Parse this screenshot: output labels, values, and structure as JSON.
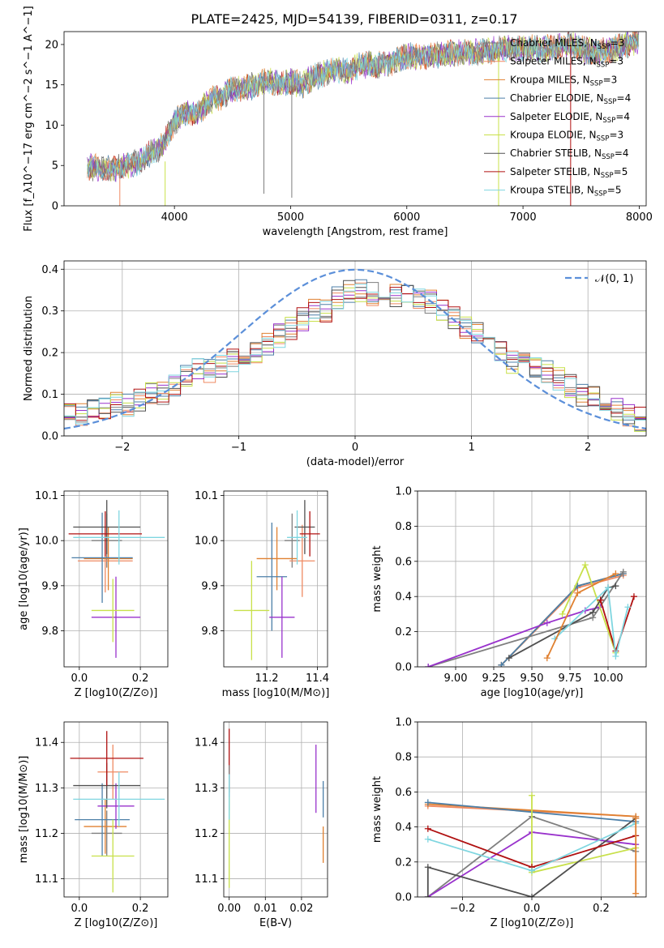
{
  "title": "PLATE=2425, MJD=54139, FIBERID=0311, z=0.17",
  "series_colors": [
    "#7f7f7f",
    "#ef8a62",
    "#e08030",
    "#4c7fa8",
    "#9932cc",
    "#c8e04a",
    "#505050",
    "#b01010",
    "#7fd6e0"
  ],
  "chart_data": [
    {
      "id": "spectrum",
      "type": "line",
      "xlabel": "wavelength [Angstrom, rest frame]",
      "ylabel": "Flux [f_λ10^−17 erg cm^−2 s^−1 A^−1]",
      "xlim": [
        3050,
        8060
      ],
      "ylim": [
        0,
        21.6
      ],
      "xticks": [
        4000,
        5000,
        6000,
        7000,
        8000
      ],
      "yticks": [
        0,
        5,
        10,
        15,
        20
      ],
      "grid": false,
      "legend_position": "upper-right",
      "series": [
        {
          "name": "Chabrier MILES, N_SSP=3"
        },
        {
          "name": "Salpeter MILES, N_SSP=3"
        },
        {
          "name": "Kroupa MILES, N_SSP=3"
        },
        {
          "name": "Chabrier ELODIE, N_SSP=4"
        },
        {
          "name": "Salpeter ELODIE, N_SSP=4"
        },
        {
          "name": "Kroupa ELODIE, N_SSP=3"
        },
        {
          "name": "Chabrier STELIB, N_SSP=4"
        },
        {
          "name": "Salpeter STELIB, N_SSP=5"
        },
        {
          "name": "Kroupa STELIB, N_SSP=5"
        }
      ],
      "continuum": {
        "x": [
          3250,
          3400,
          3500,
          3700,
          3900,
          4000,
          4100,
          4200,
          4300,
          4400,
          4500,
          4600,
          4700,
          4800,
          4900,
          5000,
          5100,
          5200,
          5300,
          5400,
          5500,
          5600,
          5800,
          6000,
          6200,
          6400,
          6600,
          6800,
          7000,
          7200,
          7400,
          7600,
          7800,
          8000
        ],
        "y": [
          4.8,
          4.7,
          4.6,
          5.5,
          7.5,
          10.5,
          11.5,
          11.5,
          13.0,
          13.5,
          14.5,
          14.5,
          15.0,
          15.5,
          15.0,
          15.5,
          15.0,
          16.0,
          16.5,
          17.0,
          16.5,
          17.5,
          17.5,
          18.5,
          18.5,
          19.0,
          19.0,
          19.5,
          19.5,
          19.5,
          20.0,
          19.0,
          19.5,
          20.5
        ]
      },
      "spikes": [
        {
          "x": 3530,
          "y0": 5.0,
          "y1": 0
        },
        {
          "x": 3920,
          "y0": 5.5,
          "y1": 0
        },
        {
          "x": 4770,
          "y0": 16.5,
          "y1": 1.5
        },
        {
          "x": 5010,
          "y0": 17.0,
          "y1": 1.0
        },
        {
          "x": 6790,
          "y0": 19.5,
          "y1": 0
        },
        {
          "x": 7410,
          "y0": 20.0,
          "y1": 0
        }
      ]
    },
    {
      "id": "residuals",
      "type": "histogram",
      "xlabel": "(data-model)/error",
      "ylabel": "Normed distribution",
      "xlim": [
        -2.5,
        2.5
      ],
      "ylim": [
        0,
        0.42
      ],
      "xticks": [
        -2,
        -1,
        0,
        1,
        2
      ],
      "yticks": [
        0.0,
        0.1,
        0.2,
        0.3,
        0.4
      ],
      "grid": true,
      "legend_position": "upper-right",
      "reference": {
        "name": "𝒩(0, 1)",
        "mean": 0,
        "sigma": 1
      },
      "bin_edges_start": -2.5,
      "bin_width": 0.1,
      "n_bins": 50,
      "mean_values": [
        0.055,
        0.055,
        0.06,
        0.07,
        0.075,
        0.075,
        0.085,
        0.1,
        0.1,
        0.125,
        0.145,
        0.165,
        0.155,
        0.165,
        0.18,
        0.17,
        0.2,
        0.22,
        0.24,
        0.26,
        0.28,
        0.3,
        0.3,
        0.33,
        0.35,
        0.35,
        0.34,
        0.35,
        0.34,
        0.34,
        0.33,
        0.32,
        0.3,
        0.28,
        0.26,
        0.25,
        0.23,
        0.21,
        0.18,
        0.175,
        0.165,
        0.155,
        0.14,
        0.12,
        0.1,
        0.09,
        0.08,
        0.065,
        0.05,
        0.04
      ]
    },
    {
      "id": "age-vs-Z",
      "type": "errorbar",
      "xlabel": "Z [log10(Z/Z⊙)]",
      "ylabel": "age  [log10(age/yr)]",
      "xlim": [
        -0.05,
        0.29
      ],
      "ylim": [
        9.72,
        10.11
      ],
      "xticks": [
        0.0,
        0.2
      ],
      "yticks": [
        9.8,
        9.9,
        10.0,
        10.1
      ],
      "grid": true,
      "points": [
        {
          "x": 0.09,
          "y": 10.0,
          "xerr": 0.05,
          "yerr": 0.06
        },
        {
          "x": 0.085,
          "y": 9.955,
          "xerr": 0.09,
          "yerr": 0.07
        },
        {
          "x": 0.095,
          "y": 9.96,
          "xerr": 0.08,
          "yerr": 0.07
        },
        {
          "x": 0.075,
          "y": 9.962,
          "xerr": 0.1,
          "yerr": 0.1
        },
        {
          "x": 0.12,
          "y": 9.83,
          "xerr": 0.08,
          "yerr": 0.09
        },
        {
          "x": 0.11,
          "y": 9.845,
          "xerr": 0.07,
          "yerr": 0.07
        },
        {
          "x": 0.09,
          "y": 10.03,
          "xerr": 0.11,
          "yerr": 0.06
        },
        {
          "x": 0.085,
          "y": 10.015,
          "xerr": 0.12,
          "yerr": 0.05
        },
        {
          "x": 0.13,
          "y": 10.007,
          "xerr": 0.15,
          "yerr": 0.06
        }
      ]
    },
    {
      "id": "age-vs-mass",
      "type": "errorbar",
      "xlabel": "mass [log10(M/M⊙)]",
      "ylabel": "",
      "xlim": [
        11.03,
        11.44
      ],
      "ylim": [
        9.72,
        10.11
      ],
      "xticks": [
        11.2,
        11.4
      ],
      "yticks": [
        9.8,
        9.9,
        10.0,
        10.1
      ],
      "grid": true,
      "points": [
        {
          "x": 11.3,
          "y": 10.0,
          "xerr": 0.03,
          "yerr": 0.06
        },
        {
          "x": 11.34,
          "y": 9.955,
          "xerr": 0.05,
          "yerr": 0.08
        },
        {
          "x": 11.24,
          "y": 9.96,
          "xerr": 0.08,
          "yerr": 0.07
        },
        {
          "x": 11.22,
          "y": 9.92,
          "xerr": 0.06,
          "yerr": 0.12
        },
        {
          "x": 11.26,
          "y": 9.83,
          "xerr": 0.05,
          "yerr": 0.09
        },
        {
          "x": 11.14,
          "y": 9.845,
          "xerr": 0.07,
          "yerr": 0.11
        },
        {
          "x": 11.35,
          "y": 10.03,
          "xerr": 0.04,
          "yerr": 0.06
        },
        {
          "x": 11.37,
          "y": 10.015,
          "xerr": 0.04,
          "yerr": 0.05
        },
        {
          "x": 11.32,
          "y": 10.007,
          "xerr": 0.04,
          "yerr": 0.06
        }
      ]
    },
    {
      "id": "mass-weight-vs-age",
      "type": "line",
      "xlabel": "age  [log10(age/yr)]",
      "ylabel": "mass weight",
      "xlim": [
        8.75,
        10.25
      ],
      "ylim": [
        0,
        1
      ],
      "xticks": [
        9.0,
        9.25,
        9.5,
        9.75,
        10.0
      ],
      "yticks": [
        0.0,
        0.2,
        0.4,
        0.6,
        0.8,
        1.0
      ],
      "grid": true,
      "lines": [
        {
          "x": [
            9.3,
            9.8,
            10.1
          ],
          "y": [
            0.01,
            0.45,
            0.52
          ]
        },
        {
          "x": [
            9.3,
            9.8,
            10.1
          ],
          "y": [
            0.01,
            0.46,
            0.53
          ]
        },
        {
          "x": [
            9.3,
            9.8,
            10.1
          ],
          "y": [
            0.01,
            0.46,
            0.53
          ]
        },
        {
          "x": [
            8.82,
            9.9,
            10.1
          ],
          "y": [
            0.0,
            0.28,
            0.54
          ]
        },
        {
          "x": [
            8.82,
            9.6,
            9.85,
            9.95
          ],
          "y": [
            0.0,
            0.25,
            0.32,
            0.34
          ]
        },
        {
          "x": [
            9.7,
            9.85,
            10.05
          ],
          "y": [
            0.3,
            0.58,
            0.08
          ]
        },
        {
          "x": [
            9.35,
            9.9,
            10.0,
            10.05
          ],
          "y": [
            0.05,
            0.31,
            0.45,
            0.46
          ]
        },
        {
          "x": [
            9.95,
            10.05,
            10.17
          ],
          "y": [
            0.38,
            0.09,
            0.4
          ]
        },
        {
          "x": [
            9.65,
            10.0,
            10.05,
            10.13
          ],
          "y": [
            0.16,
            0.45,
            0.06,
            0.34
          ]
        },
        {
          "x": [
            9.6,
            9.8,
            10.05
          ],
          "y": [
            0.05,
            0.42,
            0.53
          ]
        }
      ]
    },
    {
      "id": "mass-vs-Z",
      "type": "errorbar",
      "xlabel": "Z [log10(Z/Z⊙)]",
      "ylabel": "mass [log10(M/M⊙)]",
      "xlim": [
        -0.05,
        0.29
      ],
      "ylim": [
        11.06,
        11.445
      ],
      "xticks": [
        0.0,
        0.2
      ],
      "yticks": [
        11.1,
        11.2,
        11.3,
        11.4
      ],
      "grid": true,
      "points": [
        {
          "x": 0.09,
          "y": 11.2,
          "xerr": 0.05,
          "yerr": 0.05
        },
        {
          "x": 0.11,
          "y": 11.335,
          "xerr": 0.05,
          "yerr": 0.06
        },
        {
          "x": 0.085,
          "y": 11.215,
          "xerr": 0.07,
          "yerr": 0.06
        },
        {
          "x": 0.075,
          "y": 11.23,
          "xerr": 0.09,
          "yerr": 0.08
        },
        {
          "x": 0.12,
          "y": 11.26,
          "xerr": 0.06,
          "yerr": 0.05
        },
        {
          "x": 0.11,
          "y": 11.15,
          "xerr": 0.07,
          "yerr": 0.08
        },
        {
          "x": 0.09,
          "y": 11.305,
          "xerr": 0.11,
          "yerr": 0.05
        },
        {
          "x": 0.09,
          "y": 11.365,
          "xerr": 0.12,
          "yerr": 0.06
        },
        {
          "x": 0.13,
          "y": 11.275,
          "xerr": 0.15,
          "yerr": 0.06
        }
      ]
    },
    {
      "id": "mass-vs-EBV",
      "type": "errorbar",
      "xlabel": "E(B-V)",
      "ylabel": "",
      "xlim": [
        -0.0015,
        0.0272
      ],
      "ylim": [
        11.06,
        11.445
      ],
      "xticks": [
        0.0,
        0.01,
        0.02
      ],
      "yticks": [
        11.1,
        11.2,
        11.3,
        11.4
      ],
      "grid": true,
      "points": [
        {
          "x": 0.0,
          "y": 11.36,
          "xerr": 0,
          "yerr": 0.07
        },
        {
          "x": 0.0,
          "y": 11.3,
          "xerr": 0,
          "yerr": 0.05
        },
        {
          "x": 0.0,
          "y": 11.18,
          "xerr": 0,
          "yerr": 0.1
        },
        {
          "x": 0.0,
          "y": 11.28,
          "xerr": 0,
          "yerr": 0.05
        },
        {
          "x": 0.024,
          "y": 11.32,
          "xerr": 0,
          "yerr": 0.075
        },
        {
          "x": 0.026,
          "y": 11.275,
          "xerr": 0,
          "yerr": 0.04
        },
        {
          "x": 0.026,
          "y": 11.175,
          "xerr": 0,
          "yerr": 0.04
        }
      ]
    },
    {
      "id": "mass-weight-vs-Z",
      "type": "line",
      "xlabel": "Z [log10(Z/Z⊙)]",
      "ylabel": "mass weight",
      "xlim": [
        -0.33,
        0.33
      ],
      "ylim": [
        0,
        1
      ],
      "xticks": [
        -0.2,
        0.0,
        0.2
      ],
      "yticks": [
        0.0,
        0.2,
        0.4,
        0.6,
        0.8,
        1.0
      ],
      "grid": true,
      "lines": [
        {
          "x": [
            -0.3,
            0.3
          ],
          "y": [
            0.52,
            0.46
          ]
        },
        {
          "x": [
            -0.3,
            0.3
          ],
          "y": [
            0.53,
            0.46
          ]
        },
        {
          "x": [
            -0.3,
            0.3
          ],
          "y": [
            0.54,
            0.43
          ]
        },
        {
          "x": [
            -0.3,
            0.0,
            0.3
          ],
          "y": [
            0.0,
            0.46,
            0.26
          ]
        },
        {
          "x": [
            -0.3,
            0.0,
            0.3
          ],
          "y": [
            0.0,
            0.37,
            0.3
          ]
        },
        {
          "x": [
            0.0,
            0.0,
            0.3
          ],
          "y": [
            0.58,
            0.14,
            0.28
          ]
        },
        {
          "x": [
            -0.3,
            -0.3,
            0.0,
            0.3
          ],
          "y": [
            0.0,
            0.17,
            0.0,
            0.45
          ]
        },
        {
          "x": [
            -0.3,
            0.0,
            0.3
          ],
          "y": [
            0.39,
            0.17,
            0.35
          ]
        },
        {
          "x": [
            -0.3,
            0.0,
            0.3
          ],
          "y": [
            0.33,
            0.15,
            0.42
          ]
        },
        {
          "x": [
            0.3,
            0.3
          ],
          "y": [
            0.02,
            0.45
          ]
        }
      ]
    }
  ]
}
